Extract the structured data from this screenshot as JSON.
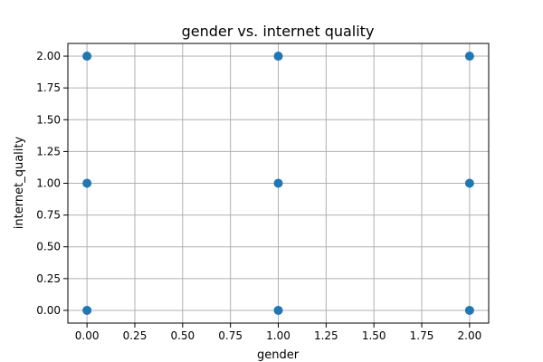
{
  "chart_data": {
    "type": "scatter",
    "title": "gender vs. internet quality",
    "xlabel": "gender",
    "ylabel": "internet_quality",
    "xlim": [
      -0.1,
      2.1
    ],
    "ylim": [
      -0.1,
      2.1
    ],
    "xticks": [
      "0.00",
      "0.25",
      "0.50",
      "0.75",
      "1.00",
      "1.25",
      "1.50",
      "1.75",
      "2.00"
    ],
    "yticks": [
      "0.00",
      "0.25",
      "0.50",
      "0.75",
      "1.00",
      "1.25",
      "1.50",
      "1.75",
      "2.00"
    ],
    "grid": true,
    "points": [
      {
        "x": 0,
        "y": 0
      },
      {
        "x": 0,
        "y": 1
      },
      {
        "x": 0,
        "y": 2
      },
      {
        "x": 1,
        "y": 0
      },
      {
        "x": 1,
        "y": 1
      },
      {
        "x": 1,
        "y": 2
      },
      {
        "x": 2,
        "y": 0
      },
      {
        "x": 2,
        "y": 1
      },
      {
        "x": 2,
        "y": 2
      }
    ],
    "point_color": "#1f77b4",
    "grid_color": "#b0b0b0"
  }
}
